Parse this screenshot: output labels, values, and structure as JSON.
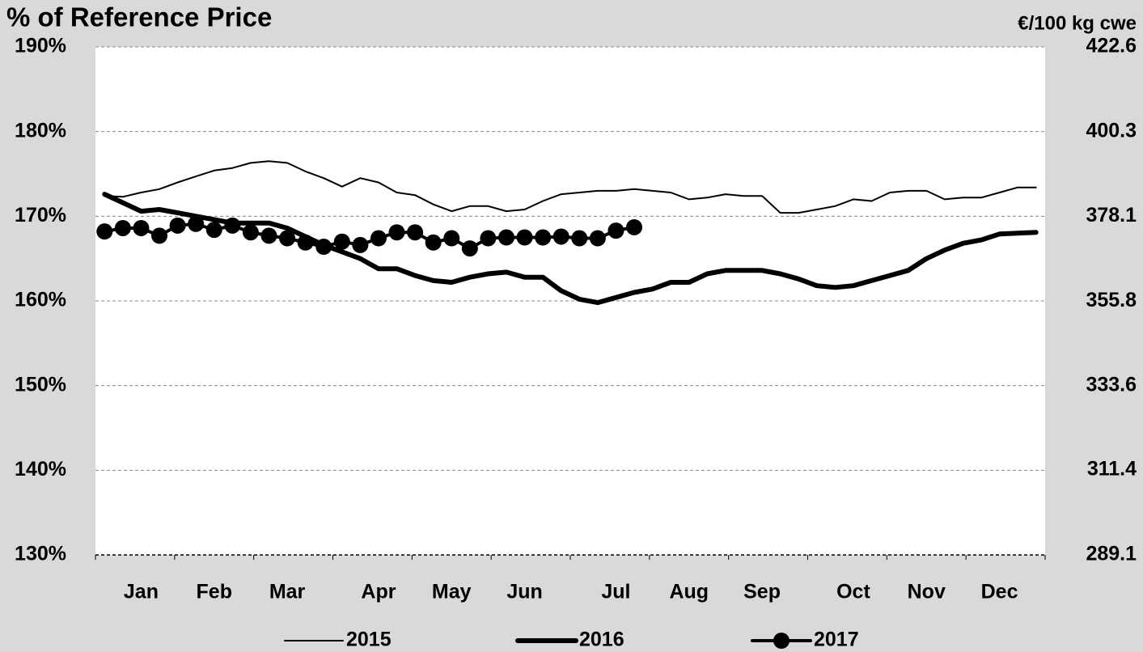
{
  "chart_data": {
    "type": "line",
    "title": "% of Reference Price",
    "y2_label": "€/100 kg cwe",
    "categories": [
      null,
      null,
      "Jan",
      null,
      null,
      null,
      "Feb",
      null,
      null,
      null,
      "Mar",
      null,
      null,
      null,
      null,
      "Apr",
      null,
      null,
      null,
      "May",
      null,
      null,
      null,
      "Jun",
      null,
      null,
      null,
      null,
      "Jul",
      null,
      null,
      null,
      "Aug",
      null,
      null,
      null,
      "Sep",
      null,
      null,
      null,
      null,
      "Oct",
      null,
      null,
      null,
      "Nov",
      null,
      null,
      null,
      "Dec",
      null,
      null
    ],
    "series": [
      {
        "name": "2015",
        "color": "#000000",
        "values": [
          172.4,
          172.3,
          172.8,
          173.2,
          174.0,
          174.7,
          175.4,
          175.7,
          176.3,
          176.5,
          176.3,
          175.3,
          174.5,
          173.5,
          174.5,
          174.0,
          172.8,
          172.5,
          171.4,
          170.6,
          171.2,
          171.2,
          170.6,
          170.8,
          171.8,
          172.6,
          172.8,
          173.0,
          173.0,
          173.2,
          173.0,
          172.8,
          172.0,
          172.2,
          172.6,
          172.4,
          172.4,
          170.4,
          170.4,
          170.8,
          171.2,
          172.0,
          171.8,
          172.8,
          173.0,
          173.0,
          172.0,
          172.2,
          172.2,
          172.8,
          173.4,
          173.4
        ]
      },
      {
        "name": "2016",
        "color": "#000000",
        "values": [
          172.6,
          171.6,
          170.6,
          170.8,
          170.4,
          170.0,
          169.6,
          169.2,
          169.2,
          169.2,
          168.6,
          167.6,
          166.6,
          165.8,
          165.0,
          163.8,
          163.8,
          163.0,
          162.4,
          162.2,
          162.8,
          163.2,
          163.4,
          162.8,
          162.8,
          161.2,
          160.2,
          159.8,
          160.4,
          161.0,
          161.4,
          162.2,
          162.2,
          163.2,
          163.6,
          163.6,
          163.6,
          163.2,
          162.6,
          161.8,
          161.6,
          161.8,
          162.4,
          163.0,
          163.6,
          165.0,
          166.0,
          166.8,
          167.2,
          167.9,
          168.0,
          168.1
        ]
      },
      {
        "name": "2017",
        "color": "#000000",
        "marker": "circle",
        "values": [
          168.2,
          168.6,
          168.6,
          167.7,
          168.9,
          169.1,
          168.4,
          168.9,
          168.1,
          167.7,
          167.4,
          166.9,
          166.4,
          167.0,
          166.6,
          167.4,
          168.1,
          168.1,
          166.9,
          167.4,
          166.2,
          167.4,
          167.5,
          167.5,
          167.5,
          167.6,
          167.4,
          167.4,
          168.3,
          168.7,
          null,
          null,
          null,
          null,
          null,
          null,
          null,
          null,
          null,
          null,
          null,
          null,
          null,
          null,
          null,
          null,
          null,
          null,
          null,
          null,
          null,
          null
        ]
      }
    ],
    "ylim": [
      130,
      190
    ],
    "yticks": [
      {
        "value": 130,
        "label": "130%"
      },
      {
        "value": 140,
        "label": "140%"
      },
      {
        "value": 150,
        "label": "150%"
      },
      {
        "value": 160,
        "label": "160%"
      },
      {
        "value": 170,
        "label": "170%"
      },
      {
        "value": 180,
        "label": "180%"
      },
      {
        "value": 190,
        "label": "190%"
      }
    ],
    "y2lim": [
      289.1,
      422.6
    ],
    "y2ticks": [
      289.1,
      311.4,
      333.6,
      355.8,
      378.1,
      400.3,
      422.6
    ],
    "grid": true
  }
}
